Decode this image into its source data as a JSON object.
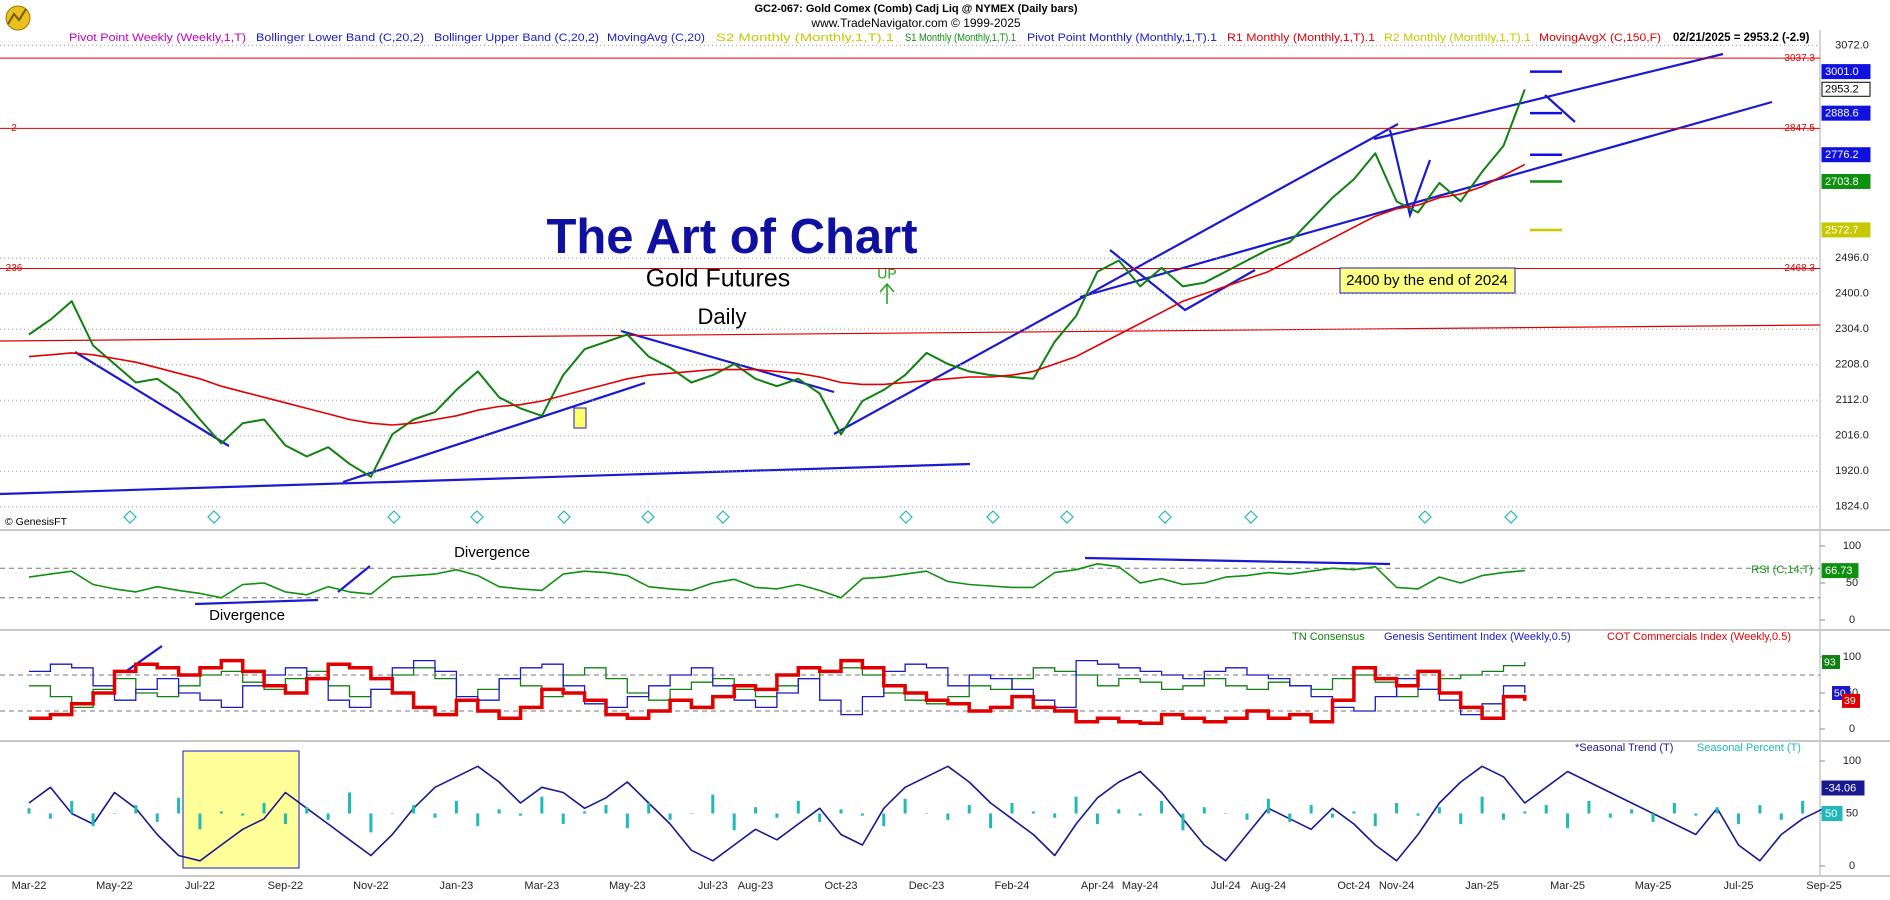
{
  "header": {
    "symbol": "GC2-067:  Gold Comex (Comb) Cadj Liq @ NYMEX  (Daily bars)",
    "site": "www.TradeNavigator.com © 1999-2025",
    "last": "02/21/2025 = 2953.2 (-2.9)",
    "copyright": "© GenesisFT"
  },
  "chart_data": [
    {
      "type": "line",
      "title": "The Art of Chart",
      "subtitle": "Gold Futures",
      "annotations": [
        "Daily",
        "UP",
        "2400 by the end of 2024"
      ],
      "legend": [
        {
          "name": "Pivot Point Weekly (Weekly,1,T)",
          "color": "#c000c0"
        },
        {
          "name": "Bollinger Lower Band (C,20,2)",
          "color": "#1a1ac8"
        },
        {
          "name": "Bollinger Upper Band (C,20,2)",
          "color": "#1a1ac8"
        },
        {
          "name": "MovingAvg (C,20)",
          "color": "#1a1ac8"
        },
        {
          "name": "S2 Monthly (Monthly,1,T).1",
          "color": "#c8c800"
        },
        {
          "name": "S1 Monthly (Monthly,1,T).1",
          "color": "#109010"
        },
        {
          "name": "Pivot Point Monthly (Monthly,1,T).1",
          "color": "#1a1ac8"
        },
        {
          "name": "R1 Monthly (Monthly,1,T).1",
          "color": "#e00000"
        },
        {
          "name": "R2 Monthly (Monthly,1,T).1",
          "color": "#c8c800"
        }
      ],
      "categories": [
        "Mar-22",
        null,
        null,
        null,
        "May-22",
        null,
        null,
        null,
        "Jul-22",
        null,
        null,
        null,
        "Sep-22",
        null,
        null,
        null,
        "Nov-22",
        null,
        null,
        null,
        "Jan-23",
        null,
        null,
        null,
        "Mar-23",
        null,
        null,
        null,
        "May-23",
        null,
        null,
        null,
        "Jul-23",
        null,
        "Aug-23",
        null,
        null,
        null,
        "Oct-23",
        null,
        null,
        null,
        "Dec-23",
        null,
        null,
        null,
        "Feb-24",
        null,
        null,
        null,
        "Apr-24",
        null,
        "May-24",
        null,
        null,
        null,
        "Jul-24",
        null,
        "Aug-24",
        null,
        null,
        null,
        "Oct-24",
        null,
        "Nov-24",
        null,
        null,
        null,
        "Jan-25",
        null,
        null,
        null,
        "Mar-25",
        null,
        null,
        null,
        "May-25",
        null,
        null,
        null,
        "Jul-25",
        null,
        null,
        null,
        "Sep-25"
      ],
      "series": [
        {
          "color": "#108010",
          "values": [
            2290,
            2330,
            2380,
            2260,
            2210,
            2160,
            2170,
            2130,
            2060,
            1995,
            2050,
            2060,
            1990,
            1960,
            1985,
            1940,
            1905,
            2020,
            2060,
            2080,
            2140,
            2190,
            2120,
            2090,
            2070,
            2180,
            2250,
            2270,
            2290,
            2230,
            2200,
            2160,
            2180,
            2210,
            2170,
            2150,
            2170,
            2130,
            2020,
            2110,
            2140,
            2180,
            2240,
            2210,
            2190,
            2180,
            2175,
            2170,
            2270,
            2340,
            2460,
            2490,
            2420,
            2470,
            2420,
            2430,
            2460,
            2490,
            2520,
            2540,
            2600,
            2660,
            2710,
            2780,
            2650,
            2620,
            2700,
            2650,
            2730,
            2800,
            2953.2,
            null,
            null,
            null,
            null,
            null,
            null,
            null,
            null,
            null,
            null,
            null,
            null,
            null,
            null
          ]
        },
        {
          "name": "MovingAvgX (C,150,F)",
          "color": "#e00000",
          "values": [
            2230,
            2235,
            2240,
            2235,
            2225,
            2215,
            2200,
            2185,
            2170,
            2150,
            2135,
            2120,
            2105,
            2090,
            2075,
            2060,
            2050,
            2045,
            2050,
            2060,
            2070,
            2085,
            2095,
            2100,
            2110,
            2125,
            2140,
            2155,
            2170,
            2180,
            2185,
            2190,
            2195,
            2195,
            2195,
            2190,
            2185,
            2175,
            2160,
            2155,
            2155,
            2160,
            2165,
            2170,
            2175,
            2175,
            2180,
            2190,
            2210,
            2230,
            2260,
            2290,
            2320,
            2350,
            2380,
            2400,
            2420,
            2440,
            2460,
            2490,
            2520,
            2550,
            2580,
            2610,
            2630,
            2640,
            2660,
            2670,
            2690,
            2720,
            2750,
            null,
            null,
            null,
            null,
            null,
            null,
            null,
            null,
            null,
            null,
            null,
            null,
            null,
            null
          ]
        }
      ],
      "levels": [
        {
          "value": 3037.3,
          "color": "#e00000"
        },
        {
          "value": 2847.5,
          "tag": "2",
          "color": "#e00000"
        },
        {
          "value": 2468.3,
          "tag": "236",
          "color": "#e00000"
        }
      ],
      "price_boxes": [
        {
          "value": 3001,
          "label": "3001.0",
          "color": "#1010e0"
        },
        {
          "value": 2888.6,
          "color": "#1010e0"
        },
        {
          "value": 2776.2,
          "color": "#1010e0"
        },
        {
          "value": 2703.8,
          "color": "#109010"
        },
        {
          "value": 2572.7,
          "color": "#c8c800"
        }
      ],
      "ylim": [
        1780,
        3100
      ],
      "yticks": [
        {
          "value": 1824,
          "label": "1824.0"
        },
        {
          "value": 1920,
          "label": "1920.0"
        },
        {
          "value": 2016,
          "label": "2016.0"
        },
        {
          "value": 2112,
          "label": "2112.0"
        },
        {
          "value": 2208,
          "label": "2208.0"
        },
        {
          "value": 2304,
          "label": "2304.0"
        },
        {
          "value": 2400,
          "label": "2400.0"
        },
        {
          "value": 2496,
          "label": "2496.0"
        },
        {
          "value": 3072,
          "label": "3072.0"
        }
      ],
      "grid": true
    },
    {
      "type": "line",
      "title": "RSI (C,14,T)",
      "annotations": [
        "Divergence",
        "Divergence"
      ],
      "series": [
        {
          "color": "#109010",
          "values": [
            58,
            62,
            66,
            48,
            42,
            38,
            45,
            40,
            36,
            30,
            48,
            50,
            38,
            34,
            45,
            38,
            35,
            58,
            60,
            62,
            68,
            60,
            45,
            42,
            40,
            62,
            66,
            64,
            60,
            45,
            42,
            40,
            50,
            55,
            44,
            42,
            48,
            40,
            30,
            56,
            58,
            62,
            66,
            52,
            48,
            46,
            44,
            44,
            64,
            68,
            76,
            72,
            50,
            56,
            48,
            50,
            58,
            60,
            64,
            62,
            66,
            70,
            68,
            72,
            44,
            42,
            58,
            50,
            60,
            64,
            66.73
          ]
        }
      ],
      "ylim": [
        0,
        100
      ],
      "yticks": [
        0,
        50,
        100
      ],
      "guides": [
        30,
        70
      ],
      "grid": false
    },
    {
      "type": "step",
      "series": [
        {
          "name": "TN Consensus",
          "color": "#108010",
          "values": [
            60,
            45,
            30,
            55,
            70,
            50,
            45,
            60,
            75,
            80,
            65,
            55,
            70,
            80,
            60,
            45,
            55,
            75,
            85,
            70,
            40,
            55,
            70,
            60,
            45,
            75,
            85,
            70,
            50,
            40,
            55,
            65,
            70,
            55,
            45,
            60,
            70,
            80,
            85,
            75,
            50,
            40,
            35,
            45,
            60,
            55,
            70,
            85,
            80,
            75,
            60,
            70,
            65,
            55,
            60,
            70,
            60,
            55,
            65,
            60,
            55,
            70,
            75,
            65,
            45,
            55,
            70,
            75,
            80,
            88,
            93
          ]
        },
        {
          "name": "Genesis Sentiment Index (Weekly,0.5)",
          "color": "#1a1ac8",
          "values": [
            80,
            90,
            85,
            60,
            40,
            55,
            70,
            50,
            40,
            30,
            60,
            75,
            85,
            70,
            40,
            30,
            55,
            85,
            95,
            80,
            45,
            40,
            70,
            85,
            90,
            60,
            35,
            30,
            45,
            60,
            75,
            85,
            60,
            40,
            30,
            50,
            70,
            40,
            20,
            45,
            80,
            90,
            85,
            60,
            75,
            70,
            55,
            40,
            30,
            95,
            90,
            85,
            80,
            75,
            70,
            80,
            85,
            75,
            70,
            60,
            45,
            30,
            25,
            45,
            70,
            55,
            40,
            20,
            35,
            60,
            50
          ]
        },
        {
          "name": "COT Commercials Index (Weekly,0.5)",
          "color": "#e00000",
          "values": [
            15,
            20,
            35,
            50,
            80,
            90,
            85,
            75,
            85,
            95,
            80,
            60,
            50,
            70,
            90,
            85,
            70,
            50,
            30,
            20,
            40,
            25,
            15,
            30,
            55,
            50,
            40,
            20,
            15,
            25,
            40,
            30,
            45,
            60,
            55,
            75,
            85,
            80,
            95,
            85,
            60,
            50,
            40,
            35,
            25,
            30,
            45,
            30,
            25,
            10,
            15,
            10,
            8,
            20,
            15,
            10,
            15,
            25,
            15,
            20,
            10,
            40,
            85,
            70,
            60,
            80,
            50,
            30,
            15,
            45,
            39
          ]
        }
      ],
      "ylim": [
        0,
        100
      ],
      "yticks": [
        0,
        50,
        100
      ],
      "guides": [
        25,
        75
      ],
      "grid": false
    },
    {
      "type": "line",
      "trend_readout": "-34.06",
      "series": [
        {
          "name": "*Seasonal Trend (T)",
          "color": "#1a1a90",
          "values": [
            60,
            75,
            50,
            40,
            70,
            55,
            30,
            10,
            5,
            20,
            35,
            45,
            70,
            55,
            40,
            25,
            10,
            30,
            55,
            75,
            85,
            95,
            80,
            60,
            75,
            70,
            55,
            65,
            80,
            60,
            40,
            15,
            5,
            20,
            35,
            25,
            40,
            55,
            30,
            20,
            55,
            75,
            85,
            95,
            80,
            60,
            45,
            30,
            10,
            40,
            65,
            80,
            90,
            70,
            45,
            20,
            5,
            30,
            55,
            45,
            35,
            55,
            40,
            20,
            5,
            30,
            60,
            80,
            95,
            85,
            60,
            75,
            90,
            80,
            70,
            60,
            50,
            40,
            30,
            55,
            20,
            5,
            30,
            45,
            55
          ]
        },
        {
          "name": "Seasonal Percent (T)",
          "color": "#20b8b8",
          "style": "bars",
          "values": [
            55,
            45,
            62,
            38,
            50,
            58,
            42,
            65,
            35,
            52,
            48,
            60,
            40,
            56,
            44,
            70,
            32,
            50,
            58,
            46,
            62,
            38,
            54,
            48,
            66,
            40,
            52,
            58,
            36,
            60,
            44,
            50,
            68,
            34,
            56,
            46,
            62,
            42,
            54,
            48,
            38,
            64,
            50,
            44,
            58,
            36,
            60,
            52,
            46,
            66,
            40,
            54,
            48,
            62,
            34,
            56,
            50,
            44,
            64,
            42,
            58,
            46,
            52,
            38,
            60,
            48,
            56,
            40,
            66,
            44,
            52,
            58,
            36,
            62,
            46,
            54,
            42,
            60,
            48,
            56,
            40,
            58,
            44,
            62,
            50
          ]
        }
      ],
      "ylim": [
        0,
        100
      ],
      "yticks": [
        0,
        50,
        100
      ],
      "grid": false
    }
  ]
}
